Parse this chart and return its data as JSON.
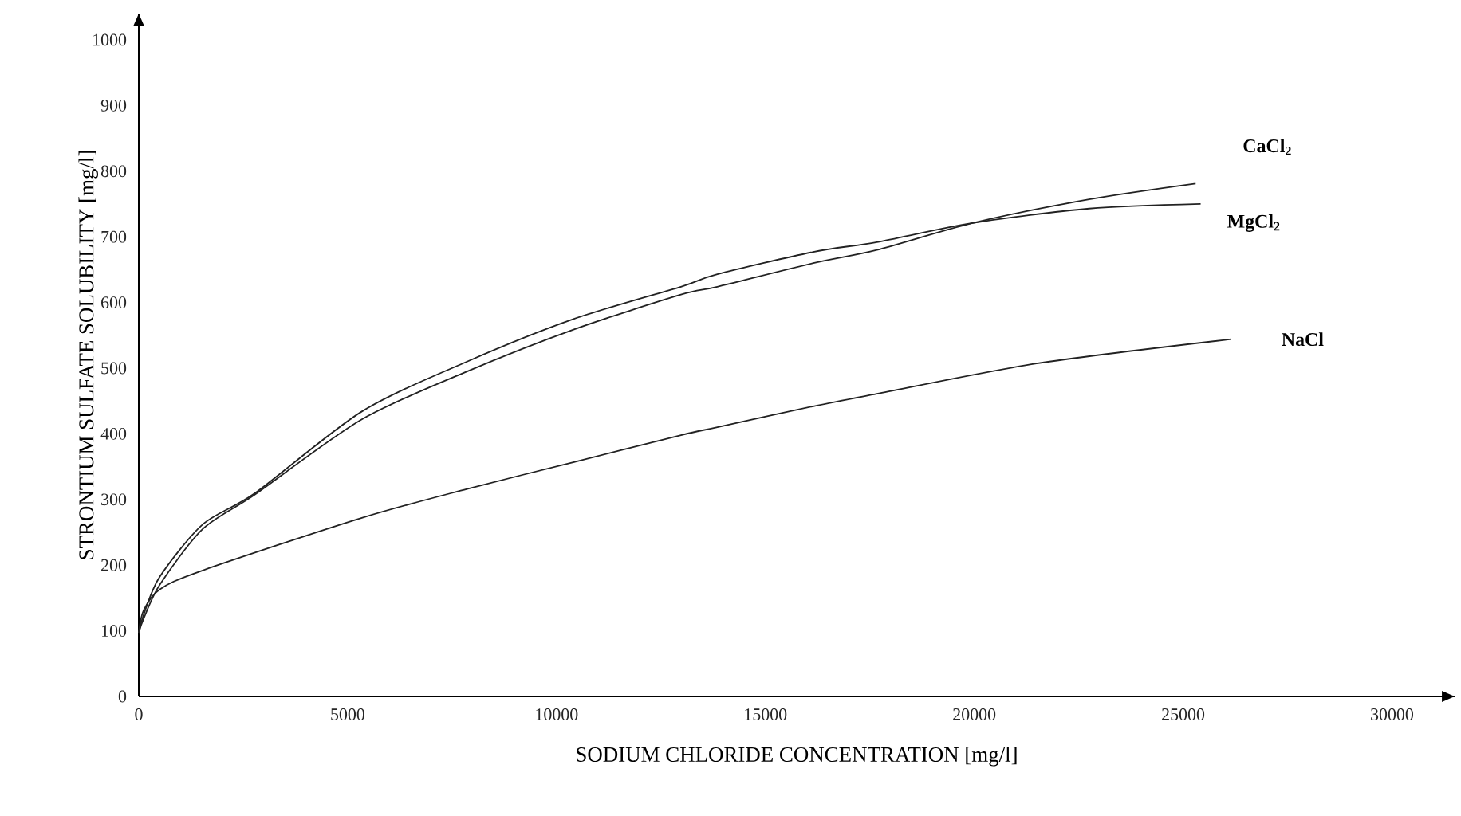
{
  "chart_data": {
    "type": "line",
    "xlabel": "SODIUM CHLORIDE CONCENTRATION [mg/l]",
    "ylabel": "STRONTIUM SULFATE SOLUBILITY [mg/l]",
    "xlim": [
      0,
      31500
    ],
    "ylim": [
      0,
      1040
    ],
    "xticks": [
      0,
      5000,
      10000,
      15000,
      20000,
      25000,
      30000
    ],
    "yticks": [
      0,
      100,
      200,
      300,
      400,
      500,
      600,
      700,
      800,
      900,
      1000
    ],
    "grid": false,
    "legend": false,
    "line_style": "solid",
    "marker": "none",
    "series": [
      {
        "name": "CaCl$_{2}$",
        "color": "#222222",
        "x": [
          0,
          115,
          500,
          1530,
          2790,
          5340,
          7860,
          10420,
          12980,
          13850,
          16150,
          17670,
          19960,
          22750,
          25300
        ],
        "values": [
          97,
          118,
          170,
          255,
          308,
          422,
          495,
          559,
          612,
          624,
          660,
          680,
          721,
          757,
          781
        ]
      },
      {
        "name": "MgCl$_{2}$",
        "color": "#222222",
        "x": [
          0,
          115,
          500,
          1530,
          2790,
          5340,
          7860,
          10420,
          12980,
          13850,
          16150,
          17670,
          19960,
          22750,
          25420
        ],
        "values": [
          97,
          124,
          182,
          262,
          310,
          434,
          510,
          575,
          624,
          643,
          677,
          692,
          721,
          743,
          750
        ]
      },
      {
        "name": "NaCl",
        "color": "#222222",
        "x": [
          0,
          115,
          500,
          1530,
          5340,
          7860,
          10420,
          12980,
          13850,
          16150,
          17670,
          21490,
          26150
        ],
        "values": [
          97,
          131,
          163,
          192,
          272,
          316,
          357,
          398,
          410,
          442,
          461,
          507,
          544
        ]
      }
    ]
  }
}
